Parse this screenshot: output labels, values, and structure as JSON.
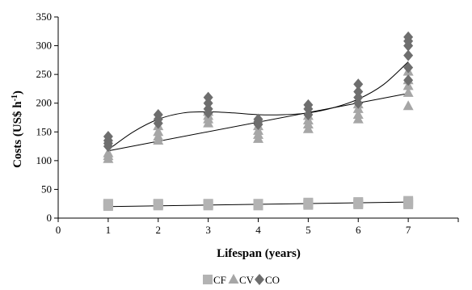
{
  "chart_data": {
    "type": "scatter",
    "title": "",
    "xlabel": "Lifespan (years)",
    "ylabel_main": "Costs (US$ h",
    "ylabel_sup": "-1",
    "ylabel_close": ")",
    "xlim": [
      0,
      8
    ],
    "ylim": [
      0,
      350
    ],
    "x_ticks": [
      "0",
      "1",
      "2",
      "3",
      "4",
      "5",
      "6",
      "7"
    ],
    "y_ticks": [
      "0",
      "50",
      "100",
      "150",
      "200",
      "250",
      "300",
      "350"
    ],
    "grid": false,
    "legend_position": "bottom-center",
    "series": [
      {
        "name": "CF",
        "marker": "square",
        "color": "#b3b3b3",
        "points": [
          [
            1,
            21
          ],
          [
            1,
            23
          ],
          [
            1,
            25
          ],
          [
            2,
            22
          ],
          [
            2,
            24
          ],
          [
            2,
            25
          ],
          [
            3,
            22
          ],
          [
            3,
            24
          ],
          [
            3,
            25
          ],
          [
            4,
            22
          ],
          [
            4,
            24
          ],
          [
            4,
            25
          ],
          [
            5,
            23
          ],
          [
            5,
            25
          ],
          [
            5,
            27
          ],
          [
            6,
            24
          ],
          [
            6,
            26
          ],
          [
            6,
            28
          ],
          [
            7,
            24
          ],
          [
            7,
            27
          ],
          [
            7,
            30
          ]
        ]
      },
      {
        "name": "CV",
        "marker": "triangle",
        "color": "#a6a6a6",
        "points": [
          [
            1,
            103
          ],
          [
            1,
            108
          ],
          [
            1,
            113
          ],
          [
            2,
            135
          ],
          [
            2,
            142
          ],
          [
            2,
            150
          ],
          [
            2,
            160
          ],
          [
            3,
            165
          ],
          [
            3,
            172
          ],
          [
            3,
            178
          ],
          [
            3,
            185
          ],
          [
            4,
            138
          ],
          [
            4,
            145
          ],
          [
            4,
            152
          ],
          [
            4,
            160
          ],
          [
            5,
            155
          ],
          [
            5,
            163
          ],
          [
            5,
            170
          ],
          [
            5,
            178
          ],
          [
            6,
            172
          ],
          [
            6,
            180
          ],
          [
            6,
            190
          ],
          [
            6,
            198
          ],
          [
            7,
            195
          ],
          [
            7,
            218
          ],
          [
            7,
            230
          ],
          [
            7,
            240
          ],
          [
            7,
            255
          ]
        ]
      },
      {
        "name": "CO",
        "marker": "diamond",
        "color": "#6e6e6e",
        "points": [
          [
            1,
            125
          ],
          [
            1,
            130
          ],
          [
            1,
            135
          ],
          [
            1,
            142
          ],
          [
            2,
            165
          ],
          [
            2,
            172
          ],
          [
            2,
            180
          ],
          [
            3,
            183
          ],
          [
            3,
            190
          ],
          [
            3,
            200
          ],
          [
            3,
            210
          ],
          [
            4,
            163
          ],
          [
            4,
            168
          ],
          [
            4,
            172
          ],
          [
            5,
            180
          ],
          [
            5,
            190
          ],
          [
            5,
            197
          ],
          [
            6,
            200
          ],
          [
            6,
            210
          ],
          [
            6,
            220
          ],
          [
            6,
            233
          ],
          [
            7,
            240
          ],
          [
            7,
            262
          ],
          [
            7,
            283
          ],
          [
            7,
            300
          ],
          [
            7,
            308
          ],
          [
            7,
            315
          ]
        ]
      }
    ],
    "trendlines": [
      {
        "series": "CF",
        "type": "linear",
        "points": [
          [
            1,
            20
          ],
          [
            7,
            28
          ]
        ]
      },
      {
        "series": "CV",
        "type": "linear",
        "points": [
          [
            1,
            117
          ],
          [
            7,
            217
          ]
        ]
      },
      {
        "series": "CO",
        "type": "polynomial",
        "points": [
          [
            1,
            119
          ],
          [
            1.5,
            150
          ],
          [
            2,
            172
          ],
          [
            2.5,
            183
          ],
          [
            3,
            185
          ],
          [
            3.5,
            183
          ],
          [
            4,
            180
          ],
          [
            4.5,
            180
          ],
          [
            5,
            183
          ],
          [
            5.5,
            192
          ],
          [
            6,
            207
          ],
          [
            6.5,
            232
          ],
          [
            7,
            272
          ]
        ]
      }
    ]
  }
}
